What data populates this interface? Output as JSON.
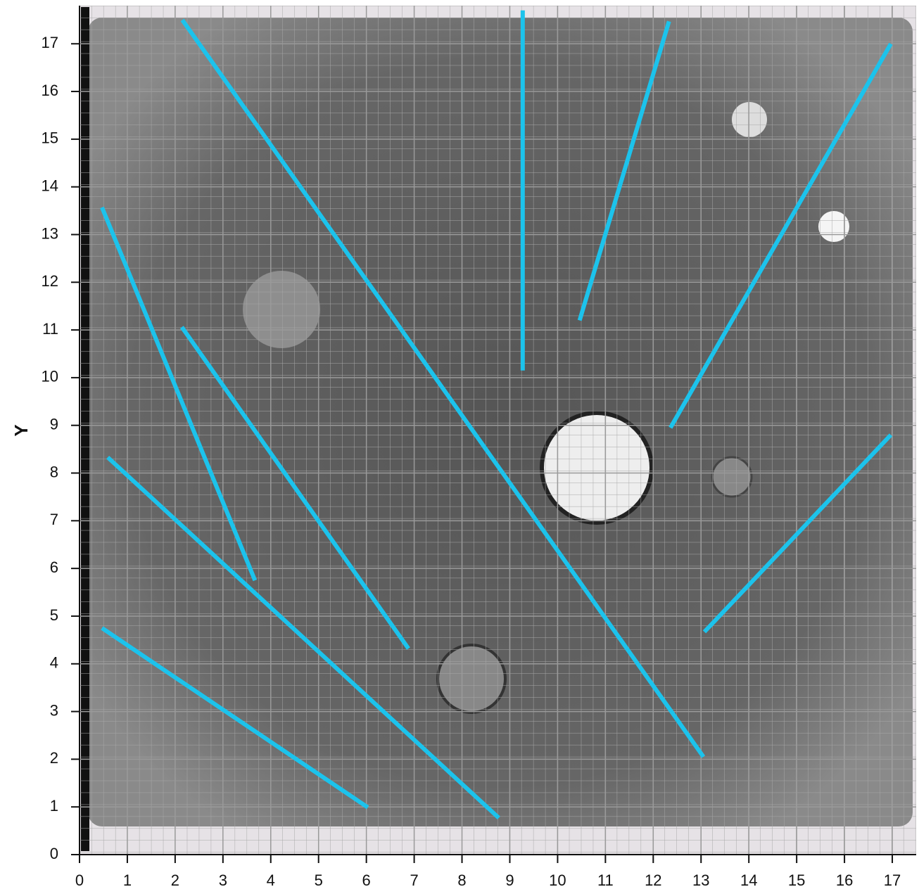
{
  "chart_data": {
    "type": "line",
    "y_label": "Y",
    "xlim": [
      0,
      17.5
    ],
    "ylim": [
      0,
      17.8
    ],
    "xticks": [
      0,
      1,
      2,
      3,
      4,
      5,
      6,
      7,
      8,
      9,
      10,
      11,
      12,
      13,
      14,
      15,
      16,
      17
    ],
    "yticks": [
      0,
      1,
      2,
      3,
      4,
      5,
      6,
      7,
      8,
      9,
      10,
      11,
      12,
      13,
      14,
      15,
      16,
      17
    ],
    "grid": true,
    "series": [
      {
        "color": "#1cc3ec",
        "x": [
          2.15,
          13.05
        ],
        "values": [
          17.5,
          2.05
        ]
      },
      {
        "color": "#1cc3ec",
        "x": [
          9.27,
          9.27
        ],
        "values": [
          17.7,
          10.15
        ]
      },
      {
        "color": "#1cc3ec",
        "x": [
          12.33,
          10.46
        ],
        "values": [
          17.47,
          11.2
        ]
      },
      {
        "color": "#1cc3ec",
        "x": [
          16.97,
          12.36
        ],
        "values": [
          17.0,
          8.95
        ]
      },
      {
        "color": "#1cc3ec",
        "x": [
          16.97,
          13.07
        ],
        "values": [
          8.8,
          4.67
        ]
      },
      {
        "color": "#1cc3ec",
        "x": [
          0.47,
          3.67
        ],
        "values": [
          13.57,
          5.75
        ]
      },
      {
        "color": "#1cc3ec",
        "x": [
          2.14,
          6.88
        ],
        "values": [
          11.06,
          4.32
        ]
      },
      {
        "color": "#1cc3ec",
        "x": [
          0.59,
          8.77
        ],
        "values": [
          8.33,
          0.77
        ]
      },
      {
        "color": "#1cc3ec",
        "x": [
          0.47,
          6.03
        ],
        "values": [
          4.75,
          0.99
        ]
      }
    ]
  }
}
